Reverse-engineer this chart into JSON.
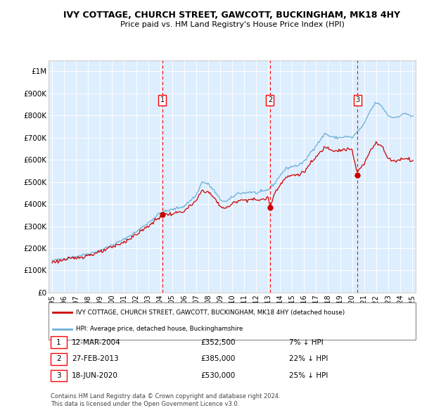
{
  "title": "IVY COTTAGE, CHURCH STREET, GAWCOTT, BUCKINGHAM, MK18 4HY",
  "subtitle": "Price paid vs. HM Land Registry's House Price Index (HPI)",
  "hpi_color": "#6baed6",
  "price_color": "#cc0000",
  "plot_bg": "#ddeeff",
  "ylim": [
    0,
    1050000
  ],
  "yticks": [
    0,
    100000,
    200000,
    300000,
    400000,
    500000,
    600000,
    700000,
    800000,
    900000,
    1000000
  ],
  "ytick_labels": [
    "£0",
    "£100K",
    "£200K",
    "£300K",
    "£400K",
    "£500K",
    "£600K",
    "£700K",
    "£800K",
    "£900K",
    "£1M"
  ],
  "xlim_start": 1994.7,
  "xlim_end": 2025.3,
  "xtick_years": [
    1995,
    1996,
    1997,
    1998,
    1999,
    2000,
    2001,
    2002,
    2003,
    2004,
    2005,
    2006,
    2007,
    2008,
    2009,
    2010,
    2011,
    2012,
    2013,
    2014,
    2015,
    2016,
    2017,
    2018,
    2019,
    2020,
    2021,
    2022,
    2023,
    2024,
    2025
  ],
  "sale_events": [
    {
      "x": 2004.19,
      "price": 352500,
      "label": "1"
    },
    {
      "x": 2013.16,
      "price": 385000,
      "label": "2"
    },
    {
      "x": 2020.46,
      "price": 530000,
      "label": "3"
    }
  ],
  "table_rows": [
    {
      "num": "1",
      "date": "12-MAR-2004",
      "price": "£352,500",
      "pct": "7% ↓ HPI"
    },
    {
      "num": "2",
      "date": "27-FEB-2013",
      "price": "£385,000",
      "pct": "22% ↓ HPI"
    },
    {
      "num": "3",
      "date": "18-JUN-2020",
      "price": "£530,000",
      "pct": "25% ↓ HPI"
    }
  ],
  "legend_line1": "IVY COTTAGE, CHURCH STREET, GAWCOTT, BUCKINGHAM, MK18 4HY (detached house)",
  "legend_line2": "HPI: Average price, detached house, Buckinghamshire",
  "footnote": "Contains HM Land Registry data © Crown copyright and database right 2024.\nThis data is licensed under the Open Government Licence v3.0."
}
